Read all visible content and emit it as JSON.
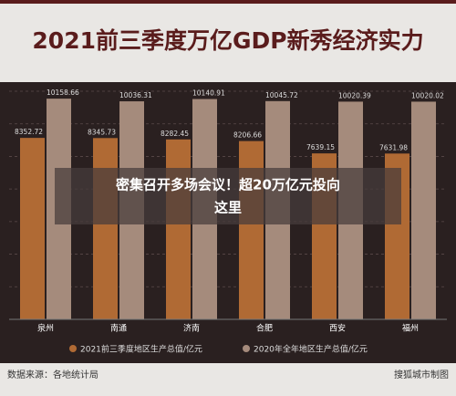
{
  "chart_data": {
    "type": "bar",
    "title": "2021前三季度万亿GDP新秀经济实力",
    "categories": [
      "泉州",
      "南通",
      "济南",
      "合肥",
      "西安",
      "福州"
    ],
    "series": [
      {
        "name": "2021前三季度地区生产总值/亿元",
        "color": "#b06a34",
        "values": [
          8352.72,
          8345.73,
          8282.45,
          8206.66,
          7639.15,
          7631.98
        ]
      },
      {
        "name": "2020年全年地区生产总值/亿元",
        "color": "#a58b7c",
        "values": [
          10158.66,
          10036.31,
          10140.91,
          10045.72,
          10020.39,
          10020.02
        ]
      }
    ],
    "ylim": [
      0,
      10500
    ],
    "yticks": [
      0,
      1500,
      3000,
      4500,
      6000,
      7500,
      9000,
      10500
    ],
    "grid": true,
    "source": "数据来源：各地统计局",
    "credit": "搜狐城市制图"
  },
  "overlay": {
    "lines": [
      "密集召开多场会议！超20万亿元投向",
      "这里"
    ]
  }
}
